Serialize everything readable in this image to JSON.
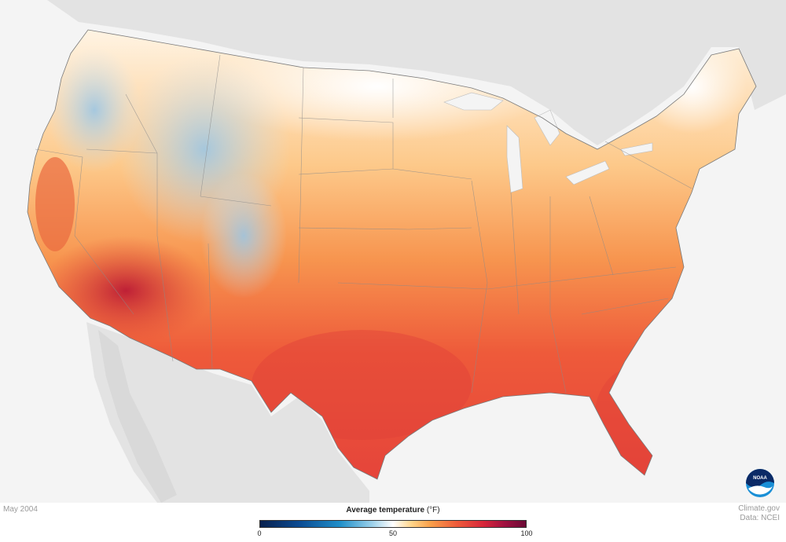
{
  "map": {
    "period": "May 2004",
    "credit_line1": "Climate.gov",
    "credit_line2": "Data: NCEI",
    "logo_text": "NOAA"
  },
  "legend": {
    "title": "Average temperature",
    "unit": "(°F)",
    "ticks": [
      "0",
      "50",
      "100"
    ],
    "range": [
      0,
      100
    ],
    "colors": [
      "#08204e",
      "#0b4c94",
      "#1f8fc9",
      "#9ad0ea",
      "#ffffff",
      "#ffd58a",
      "#f9a04a",
      "#ee5b3a",
      "#d7263a",
      "#a01040",
      "#6a0a35"
    ]
  }
}
